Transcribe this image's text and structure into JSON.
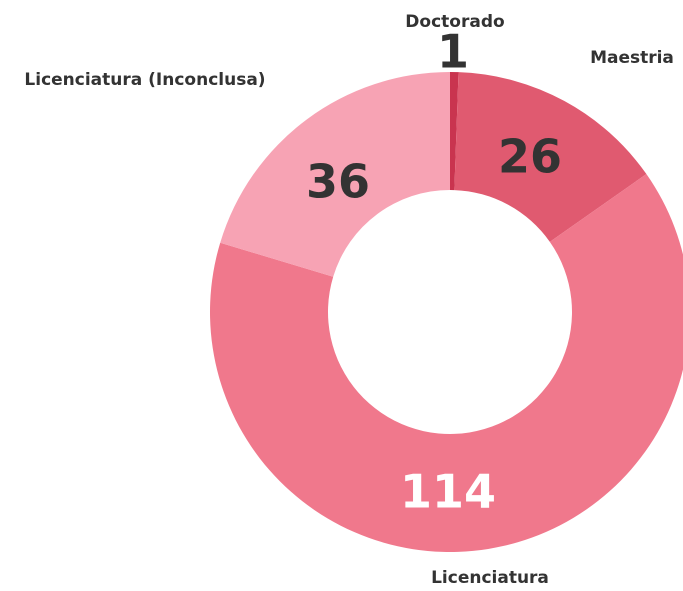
{
  "chart_data": {
    "type": "pie",
    "categories": [
      "Doctorado",
      "Maestria",
      "Licenciatura",
      "Licenciatura (Inconclusa)"
    ],
    "values": [
      1,
      26,
      114,
      36
    ],
    "colors": [
      "#c9344f",
      "#e05a70",
      "#f0788c",
      "#f7a3b4"
    ],
    "donut": true
  }
}
